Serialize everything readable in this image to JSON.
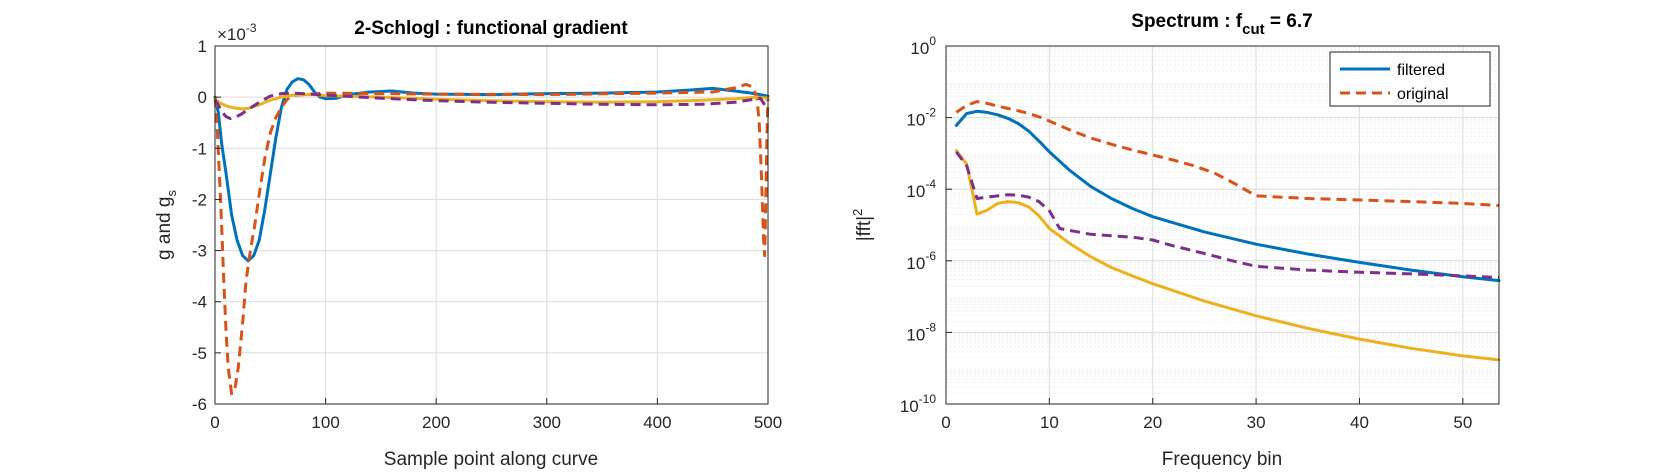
{
  "colors": {
    "blue": "#0072BD",
    "orange": "#D95319",
    "yellow": "#EDB120",
    "purple": "#7E2F8E",
    "grid": "#dcdcdc",
    "axis": "#262626"
  },
  "chart_data": [
    {
      "type": "line",
      "title": "2-Schlogl : functional gradient",
      "xlabel": "Sample point along curve",
      "ylabel_main": "g and g",
      "ylabel_sub": "s",
      "exponent_prefix": "×10",
      "exponent_power": "-3",
      "xlim": [
        0,
        500
      ],
      "ylim": [
        -6,
        1
      ],
      "xticks": [
        0,
        100,
        200,
        300,
        400,
        500
      ],
      "xtick_labels": [
        "0",
        "100",
        "200",
        "300",
        "400",
        "500"
      ],
      "yticks": [
        1,
        0,
        -1,
        -2,
        -3,
        -4,
        -5,
        -6
      ],
      "ytick_labels": [
        "1",
        "0",
        "-1",
        "-2",
        "-3",
        "-4",
        "-5",
        "-6"
      ],
      "grid": true,
      "series": [
        {
          "color_key": "blue",
          "dash": false,
          "width": 3,
          "points": [
            [
              0,
              0
            ],
            [
              3,
              -0.3
            ],
            [
              6,
              -0.9
            ],
            [
              10,
              -1.5
            ],
            [
              15,
              -2.3
            ],
            [
              20,
              -2.8
            ],
            [
              25,
              -3.1
            ],
            [
              30,
              -3.2
            ],
            [
              35,
              -3.1
            ],
            [
              40,
              -2.8
            ],
            [
              45,
              -2.2
            ],
            [
              50,
              -1.5
            ],
            [
              55,
              -0.8
            ],
            [
              60,
              -0.2
            ],
            [
              65,
              0.15
            ],
            [
              70,
              0.3
            ],
            [
              75,
              0.36
            ],
            [
              80,
              0.34
            ],
            [
              85,
              0.25
            ],
            [
              90,
              0.1
            ],
            [
              95,
              0.0
            ],
            [
              100,
              -0.03
            ],
            [
              110,
              -0.02
            ],
            [
              120,
              0.05
            ],
            [
              140,
              0.1
            ],
            [
              160,
              0.12
            ],
            [
              180,
              0.08
            ],
            [
              200,
              0.06
            ],
            [
              250,
              0.05
            ],
            [
              300,
              0.07
            ],
            [
              350,
              0.08
            ],
            [
              400,
              0.1
            ],
            [
              430,
              0.14
            ],
            [
              450,
              0.17
            ],
            [
              470,
              0.12
            ],
            [
              485,
              0.08
            ],
            [
              500,
              0.02
            ]
          ]
        },
        {
          "color_key": "orange",
          "dash": true,
          "width": 3,
          "points": [
            [
              0,
              0
            ],
            [
              2,
              -0.6
            ],
            [
              4,
              -1.5
            ],
            [
              6,
              -2.5
            ],
            [
              8,
              -3.6
            ],
            [
              10,
              -4.6
            ],
            [
              12,
              -5.3
            ],
            [
              15,
              -5.8
            ],
            [
              18,
              -5.7
            ],
            [
              21,
              -5.3
            ],
            [
              25,
              -4.4
            ],
            [
              28,
              -3.6
            ],
            [
              32,
              -3.0
            ],
            [
              36,
              -2.5
            ],
            [
              40,
              -1.9
            ],
            [
              45,
              -1.2
            ],
            [
              50,
              -0.7
            ],
            [
              55,
              -0.4
            ],
            [
              60,
              -0.2
            ],
            [
              65,
              -0.05
            ],
            [
              70,
              0.03
            ],
            [
              80,
              0.05
            ],
            [
              100,
              0.08
            ],
            [
              150,
              0.07
            ],
            [
              200,
              0.06
            ],
            [
              300,
              0.05
            ],
            [
              400,
              0.08
            ],
            [
              450,
              0.1
            ],
            [
              470,
              0.18
            ],
            [
              480,
              0.25
            ],
            [
              486,
              0.2
            ],
            [
              490,
              0.0
            ],
            [
              492,
              -0.5
            ],
            [
              494,
              -1.5
            ],
            [
              496,
              -2.8
            ],
            [
              497,
              -3.1
            ],
            [
              498,
              -2.0
            ],
            [
              499,
              -0.8
            ],
            [
              500,
              0.0
            ]
          ]
        },
        {
          "color_key": "yellow",
          "dash": false,
          "width": 3,
          "points": [
            [
              0,
              -0.05
            ],
            [
              5,
              -0.12
            ],
            [
              10,
              -0.17
            ],
            [
              15,
              -0.2
            ],
            [
              20,
              -0.22
            ],
            [
              25,
              -0.23
            ],
            [
              30,
              -0.22
            ],
            [
              40,
              -0.15
            ],
            [
              50,
              -0.06
            ],
            [
              60,
              0.0
            ],
            [
              70,
              0.04
            ],
            [
              80,
              0.05
            ],
            [
              90,
              0.05
            ],
            [
              100,
              0.03
            ],
            [
              150,
              0.0
            ],
            [
              200,
              -0.04
            ],
            [
              250,
              -0.07
            ],
            [
              300,
              -0.09
            ],
            [
              350,
              -0.1
            ],
            [
              400,
              -0.09
            ],
            [
              440,
              -0.06
            ],
            [
              470,
              -0.03
            ],
            [
              490,
              0.0
            ],
            [
              500,
              -0.02
            ]
          ]
        },
        {
          "color_key": "purple",
          "dash": true,
          "width": 3,
          "points": [
            [
              0,
              -0.05
            ],
            [
              3,
              -0.15
            ],
            [
              6,
              -0.28
            ],
            [
              10,
              -0.38
            ],
            [
              14,
              -0.42
            ],
            [
              18,
              -0.4
            ],
            [
              24,
              -0.33
            ],
            [
              30,
              -0.24
            ],
            [
              40,
              -0.1
            ],
            [
              50,
              0.02
            ],
            [
              60,
              0.07
            ],
            [
              70,
              0.08
            ],
            [
              80,
              0.07
            ],
            [
              100,
              0.04
            ],
            [
              150,
              -0.02
            ],
            [
              200,
              -0.07
            ],
            [
              250,
              -0.1
            ],
            [
              300,
              -0.12
            ],
            [
              350,
              -0.14
            ],
            [
              400,
              -0.15
            ],
            [
              440,
              -0.14
            ],
            [
              470,
              -0.1
            ],
            [
              485,
              -0.05
            ],
            [
              493,
              -0.02
            ],
            [
              497,
              -0.15
            ],
            [
              500,
              -0.05
            ]
          ]
        }
      ]
    },
    {
      "type": "line",
      "title_main": "Spectrum : f",
      "title_sub": "cut",
      "title_rest": " = 6.7",
      "xlabel": "Frequency bin",
      "ylabel_main": "|fft|",
      "ylabel_sup": "2",
      "yscale": "log",
      "xlim": [
        0,
        53.5
      ],
      "ylim": [
        1e-10,
        1
      ],
      "xticks": [
        0,
        10,
        20,
        30,
        40,
        50
      ],
      "xtick_labels": [
        "0",
        "10",
        "20",
        "30",
        "40",
        "50"
      ],
      "yticks": [
        {
          "exp": 0,
          "base": "10",
          "power": "0"
        },
        {
          "exp": -2,
          "base": "10",
          "power": "-2"
        },
        {
          "exp": -4,
          "base": "10",
          "power": "-4"
        },
        {
          "exp": -6,
          "base": "10",
          "power": "-6"
        },
        {
          "exp": -8,
          "base": "10",
          "power": "-8"
        },
        {
          "exp": -10,
          "base": "10",
          "power": "-10"
        }
      ],
      "grid": true,
      "legend_position": "top-right",
      "legend": [
        {
          "label": "filtered",
          "color_key": "blue",
          "dash": false
        },
        {
          "label": "original",
          "color_key": "orange",
          "dash": true
        }
      ],
      "series": [
        {
          "color_key": "blue",
          "dash": false,
          "width": 3,
          "points": [
            [
              1,
              0.006
            ],
            [
              2,
              0.013
            ],
            [
              3,
              0.015
            ],
            [
              4,
              0.014
            ],
            [
              5,
              0.012
            ],
            [
              6,
              0.0095
            ],
            [
              7,
              0.0068
            ],
            [
              8,
              0.0042
            ],
            [
              9,
              0.0022
            ],
            [
              10,
              0.0011
            ],
            [
              12,
              0.00033
            ],
            [
              14,
              0.00012
            ],
            [
              16,
              5.5e-05
            ],
            [
              18,
              2.9e-05
            ],
            [
              20,
              1.7e-05
            ],
            [
              25,
              6.4e-06
            ],
            [
              30,
              2.9e-06
            ],
            [
              35,
              1.55e-06
            ],
            [
              40,
              9e-07
            ],
            [
              45,
              5.5e-07
            ],
            [
              50,
              3.6e-07
            ],
            [
              53.5,
              2.8e-07
            ]
          ]
        },
        {
          "color_key": "orange",
          "dash": true,
          "width": 3,
          "points": [
            [
              1,
              0.014
            ],
            [
              2,
              0.022
            ],
            [
              3,
              0.028
            ],
            [
              4,
              0.025
            ],
            [
              5,
              0.021
            ],
            [
              6,
              0.018
            ],
            [
              7,
              0.0155
            ],
            [
              8,
              0.013
            ],
            [
              9,
              0.0105
            ],
            [
              10,
              0.008
            ],
            [
              12,
              0.0045
            ],
            [
              14,
              0.0027
            ],
            [
              16,
              0.0018
            ],
            [
              18,
              0.00125
            ],
            [
              20,
              0.0009
            ],
            [
              22,
              0.00065
            ],
            [
              24,
              0.00045
            ],
            [
              26,
              0.00028
            ],
            [
              28,
              0.00014
            ],
            [
              30,
              6.5e-05
            ],
            [
              35,
              5.5e-05
            ],
            [
              40,
              5e-05
            ],
            [
              45,
              4.5e-05
            ],
            [
              50,
              4e-05
            ],
            [
              53.5,
              3.5e-05
            ]
          ]
        },
        {
          "color_key": "yellow",
          "dash": false,
          "width": 3,
          "points": [
            [
              1,
              0.0012
            ],
            [
              2,
              0.0005
            ],
            [
              3,
              2e-05
            ],
            [
              4,
              2.6e-05
            ],
            [
              5,
              4e-05
            ],
            [
              6,
              4.5e-05
            ],
            [
              7,
              4.2e-05
            ],
            [
              8,
              3.2e-05
            ],
            [
              9,
              1.8e-05
            ],
            [
              10,
              8e-06
            ],
            [
              12,
              3e-06
            ],
            [
              14,
              1.3e-06
            ],
            [
              16,
              6.5e-07
            ],
            [
              18,
              3.8e-07
            ],
            [
              20,
              2.3e-07
            ],
            [
              25,
              7.5e-08
            ],
            [
              30,
              2.9e-08
            ],
            [
              35,
              1.3e-08
            ],
            [
              40,
              6.5e-09
            ],
            [
              45,
              3.6e-09
            ],
            [
              50,
              2.2e-09
            ],
            [
              53.5,
              1.7e-09
            ]
          ]
        },
        {
          "color_key": "purple",
          "dash": true,
          "width": 3,
          "points": [
            [
              1,
              0.0011
            ],
            [
              2,
              0.00045
            ],
            [
              3,
              5.5e-05
            ],
            [
              4,
              6e-05
            ],
            [
              5,
              6.5e-05
            ],
            [
              6,
              7e-05
            ],
            [
              7,
              6.8e-05
            ],
            [
              8,
              6e-05
            ],
            [
              9,
              4.5e-05
            ],
            [
              10,
              2.5e-05
            ],
            [
              11,
              8e-06
            ],
            [
              12,
              7e-06
            ],
            [
              14,
              5.5e-06
            ],
            [
              16,
              5e-06
            ],
            [
              18,
              4.6e-06
            ],
            [
              20,
              3.8e-06
            ],
            [
              22,
              2.6e-06
            ],
            [
              25,
              1.6e-06
            ],
            [
              28,
              9.5e-07
            ],
            [
              30,
              7e-07
            ],
            [
              35,
              5.5e-07
            ],
            [
              40,
              4.8e-07
            ],
            [
              45,
              4.3e-07
            ],
            [
              50,
              3.8e-07
            ],
            [
              53.5,
              3.4e-07
            ]
          ]
        }
      ]
    }
  ]
}
